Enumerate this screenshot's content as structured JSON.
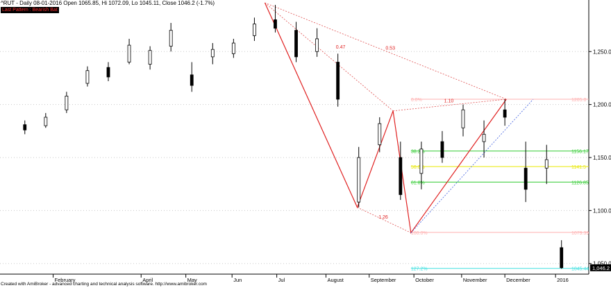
{
  "header": {
    "title": "^RUT - Daily 08-01-2016 Open 1065.85, Hi 1072.09, Lo 1045.11, Close 1046.2 (-1.7%)",
    "badge": "Last Pattern : Bearish Bat"
  },
  "footer": {
    "credit": "Created with AmiBroker - advanced charting and technical analysis software. http://www.amibroker.com"
  },
  "chart_data": {
    "type": "candlestick",
    "ylim": [
      1040,
      1296
    ],
    "y_ticks": [
      {
        "value": 1050,
        "label": "1,050.0"
      },
      {
        "value": 1100,
        "label": "1,100.0"
      },
      {
        "value": 1150,
        "label": "1,150.0"
      },
      {
        "value": 1200,
        "label": "1,200.0"
      },
      {
        "value": 1250,
        "label": "1,250.0"
      }
    ],
    "x_labels": [
      "February",
      "April",
      "May",
      "Jun",
      "Jul",
      "August",
      "September",
      "October",
      "November",
      "December",
      "2016"
    ],
    "close_marker": "1,046.2",
    "pattern_points": {
      "X": {
        "date": "2015-06-23",
        "price": 1296
      },
      "A": {
        "date": "2015-08-24",
        "price": 1103
      },
      "B": {
        "date": "2015-09-17",
        "price": 1194
      },
      "C": {
        "date": "2015-09-29",
        "price": 1079
      },
      "D": {
        "date": "2015-12-02",
        "price": 1205
      }
    },
    "ratio_labels": [
      {
        "text": "0.53"
      },
      {
        "text": "0.47"
      },
      {
        "text": "1.10"
      },
      {
        "text": "1.26"
      }
    ],
    "fib_levels": [
      {
        "pct": "0.0%",
        "price": 1205.0,
        "price_label": "1205.0",
        "color": "#ffb0b0"
      },
      {
        "pct": "38.2%",
        "price": 1156.17,
        "price_label": "1156.17",
        "color": "#33cc33"
      },
      {
        "pct": "50.0%",
        "price": 1141.5,
        "price_label": "1141.5",
        "color": "#e8e800"
      },
      {
        "pct": "61.8%",
        "price": 1126.85,
        "price_label": "1126.85",
        "color": "#33cc33"
      },
      {
        "pct": "100.0%",
        "price": 1079.39,
        "price_label": "1079.39",
        "color": "#ffb0b0"
      },
      {
        "pct": "127.2%",
        "price": 1045.44,
        "price_label": "1045.44",
        "color": "#40e0e0"
      }
    ],
    "candles": [
      {
        "date": "2015-01-13",
        "o": 1181,
        "h": 1185,
        "l": 1172,
        "c": 1176
      },
      {
        "date": "2015-01-27",
        "o": 1180,
        "h": 1192,
        "l": 1178,
        "c": 1188
      },
      {
        "date": "2015-02-10",
        "o": 1195,
        "h": 1212,
        "l": 1192,
        "c": 1208
      },
      {
        "date": "2015-02-24",
        "o": 1220,
        "h": 1236,
        "l": 1217,
        "c": 1232
      },
      {
        "date": "2015-03-10",
        "o": 1235,
        "h": 1240,
        "l": 1222,
        "c": 1226
      },
      {
        "date": "2015-03-24",
        "o": 1240,
        "h": 1262,
        "l": 1238,
        "c": 1256
      },
      {
        "date": "2015-04-07",
        "o": 1238,
        "h": 1255,
        "l": 1233,
        "c": 1251
      },
      {
        "date": "2015-04-21",
        "o": 1255,
        "h": 1277,
        "l": 1250,
        "c": 1270
      },
      {
        "date": "2015-05-05",
        "o": 1228,
        "h": 1240,
        "l": 1212,
        "c": 1218
      },
      {
        "date": "2015-05-19",
        "o": 1245,
        "h": 1258,
        "l": 1238,
        "c": 1252
      },
      {
        "date": "2015-06-02",
        "o": 1248,
        "h": 1262,
        "l": 1244,
        "c": 1258
      },
      {
        "date": "2015-06-16",
        "o": 1265,
        "h": 1282,
        "l": 1260,
        "c": 1276
      },
      {
        "date": "2015-06-30",
        "o": 1280,
        "h": 1294,
        "l": 1268,
        "c": 1272
      },
      {
        "date": "2015-07-14",
        "o": 1270,
        "h": 1278,
        "l": 1240,
        "c": 1245
      },
      {
        "date": "2015-07-28",
        "o": 1250,
        "h": 1272,
        "l": 1245,
        "c": 1262
      },
      {
        "date": "2015-08-11",
        "o": 1240,
        "h": 1248,
        "l": 1198,
        "c": 1205
      },
      {
        "date": "2015-08-25",
        "o": 1108,
        "h": 1160,
        "l": 1103,
        "c": 1150
      },
      {
        "date": "2015-09-08",
        "o": 1162,
        "h": 1188,
        "l": 1155,
        "c": 1182
      },
      {
        "date": "2015-09-22",
        "o": 1150,
        "h": 1165,
        "l": 1110,
        "c": 1115
      },
      {
        "date": "2015-10-06",
        "o": 1135,
        "h": 1165,
        "l": 1120,
        "c": 1158
      },
      {
        "date": "2015-10-20",
        "o": 1165,
        "h": 1175,
        "l": 1145,
        "c": 1150
      },
      {
        "date": "2015-11-03",
        "o": 1178,
        "h": 1200,
        "l": 1170,
        "c": 1195
      },
      {
        "date": "2015-11-17",
        "o": 1165,
        "h": 1185,
        "l": 1150,
        "c": 1172
      },
      {
        "date": "2015-12-01",
        "o": 1195,
        "h": 1205,
        "l": 1180,
        "c": 1188
      },
      {
        "date": "2015-12-15",
        "o": 1140,
        "h": 1165,
        "l": 1108,
        "c": 1120
      },
      {
        "date": "2015-12-29",
        "o": 1140,
        "h": 1162,
        "l": 1125,
        "c": 1148
      },
      {
        "date": "2016-01-08",
        "o": 1065,
        "h": 1072,
        "l": 1045,
        "c": 1046
      }
    ]
  }
}
